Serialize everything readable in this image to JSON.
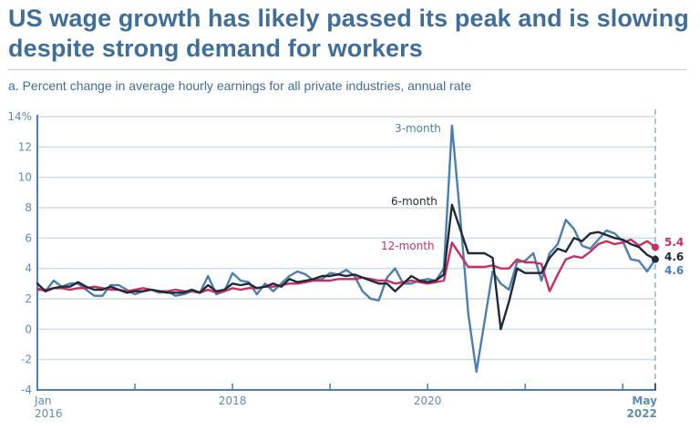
{
  "header": {
    "title": "US wage growth has likely passed its peak and is slowing despite strong demand for workers",
    "subtitle": "a. Percent change in average hourly earnings for all private industries, annual rate"
  },
  "chart_data": {
    "type": "line",
    "title": "US wage growth has likely passed its peak and is slowing despite strong demand for workers",
    "subtitle": "a. Percent change in average hourly earnings for all private industries, annual rate",
    "xlabel": "",
    "ylabel": "",
    "ylim": [
      -4,
      14
    ],
    "yticks": [
      14,
      12,
      10,
      8,
      6,
      4,
      2,
      0,
      -2,
      -4
    ],
    "ytick_labels": [
      "14%",
      "12",
      "10",
      "8",
      "6",
      "4",
      "2",
      "0",
      "-2",
      "-4"
    ],
    "x_start": "Jan 2016",
    "x_end": "May 2022",
    "xticks": [
      {
        "month_index": 0,
        "label_line1": "Jan",
        "label_line2": "2016",
        "bold": false
      },
      {
        "month_index": 12,
        "label_line1": "",
        "label_line2": "",
        "bold": false
      },
      {
        "month_index": 24,
        "label_line1": "2018",
        "label_line2": "",
        "bold": false
      },
      {
        "month_index": 36,
        "label_line1": "",
        "label_line2": "",
        "bold": false
      },
      {
        "month_index": 48,
        "label_line1": "2020",
        "label_line2": "",
        "bold": false
      },
      {
        "month_index": 60,
        "label_line1": "",
        "label_line2": "",
        "bold": false
      },
      {
        "month_index": 72,
        "label_line1": "",
        "label_line2": "",
        "bold": false
      },
      {
        "month_index": 76,
        "label_line1": "May",
        "label_line2": "2022",
        "bold": true
      }
    ],
    "grid": true,
    "series": [
      {
        "name": "3-month",
        "color": "#4a7fb0",
        "end_value_label": "4.6",
        "values": [
          2.7,
          2.5,
          3.2,
          2.8,
          3.0,
          3.0,
          2.6,
          2.2,
          2.2,
          2.9,
          2.9,
          2.6,
          2.3,
          2.5,
          2.6,
          2.4,
          2.5,
          2.2,
          2.3,
          2.5,
          2.4,
          3.5,
          2.3,
          2.5,
          3.7,
          3.2,
          3.1,
          2.3,
          3.0,
          2.5,
          3.0,
          3.5,
          3.8,
          3.6,
          3.2,
          3.3,
          3.7,
          3.6,
          3.9,
          3.5,
          2.5,
          2.0,
          1.9,
          3.4,
          4.0,
          3.0,
          3.0,
          3.2,
          3.3,
          3.2,
          4.0,
          13.4,
          7.5,
          1.0,
          -2.8,
          0.5,
          3.8,
          3.0,
          2.6,
          4.4,
          4.5,
          5.0,
          3.2,
          5.0,
          5.6,
          7.2,
          6.6,
          5.5,
          5.3,
          5.9,
          6.5,
          6.3,
          5.8,
          4.6,
          4.5,
          3.8,
          4.6
        ]
      },
      {
        "name": "6-month",
        "color": "#1e2a38",
        "end_value_label": "4.6",
        "values": [
          3.0,
          2.5,
          2.7,
          2.8,
          2.8,
          3.1,
          2.8,
          2.6,
          2.6,
          2.8,
          2.6,
          2.4,
          2.5,
          2.5,
          2.6,
          2.5,
          2.4,
          2.4,
          2.4,
          2.6,
          2.4,
          2.9,
          2.5,
          2.6,
          3.0,
          2.9,
          3.0,
          2.7,
          2.8,
          3.0,
          2.8,
          3.3,
          3.1,
          3.2,
          3.3,
          3.5,
          3.5,
          3.6,
          3.5,
          3.6,
          3.4,
          3.2,
          3.0,
          3.0,
          2.5,
          3.0,
          3.5,
          3.2,
          3.1,
          3.2,
          3.6,
          8.2,
          6.6,
          5.0,
          5.0,
          5.0,
          4.7,
          0.0,
          1.8,
          4.0,
          3.7,
          3.7,
          3.7,
          4.7,
          5.3,
          5.1,
          6.0,
          5.8,
          6.3,
          6.4,
          6.2,
          6.0,
          5.9,
          5.6,
          5.4,
          4.9,
          4.6
        ]
      },
      {
        "name": "12-month",
        "color": "#c62f5f",
        "end_value_label": "5.4",
        "values": [
          2.6,
          2.6,
          2.7,
          2.7,
          2.6,
          2.7,
          2.7,
          2.8,
          2.7,
          2.6,
          2.6,
          2.5,
          2.6,
          2.7,
          2.6,
          2.5,
          2.5,
          2.6,
          2.5,
          2.5,
          2.4,
          2.6,
          2.4,
          2.5,
          2.7,
          2.6,
          2.7,
          2.7,
          2.8,
          2.8,
          2.9,
          3.0,
          3.0,
          3.1,
          3.2,
          3.2,
          3.2,
          3.3,
          3.3,
          3.3,
          3.4,
          3.3,
          3.2,
          3.2,
          3.0,
          3.1,
          3.2,
          3.1,
          3.0,
          3.1,
          3.2,
          5.7,
          4.9,
          4.1,
          4.1,
          4.1,
          4.2,
          4.0,
          4.0,
          4.6,
          4.4,
          4.4,
          4.3,
          2.5,
          3.6,
          4.6,
          4.8,
          4.7,
          5.1,
          5.6,
          5.8,
          5.6,
          5.7,
          5.9,
          5.5,
          5.8,
          5.4
        ]
      }
    ],
    "annotations": [
      {
        "text": "3-month",
        "series": "3-month",
        "near": "April 2020 peak"
      },
      {
        "text": "6-month",
        "series": "6-month",
        "near": "April 2020 peak"
      },
      {
        "text": "12-month",
        "series": "12-month",
        "near": "April 2020 peak"
      }
    ],
    "end_marker": {
      "label": "May 2022",
      "style": "dashed vertical line"
    }
  }
}
